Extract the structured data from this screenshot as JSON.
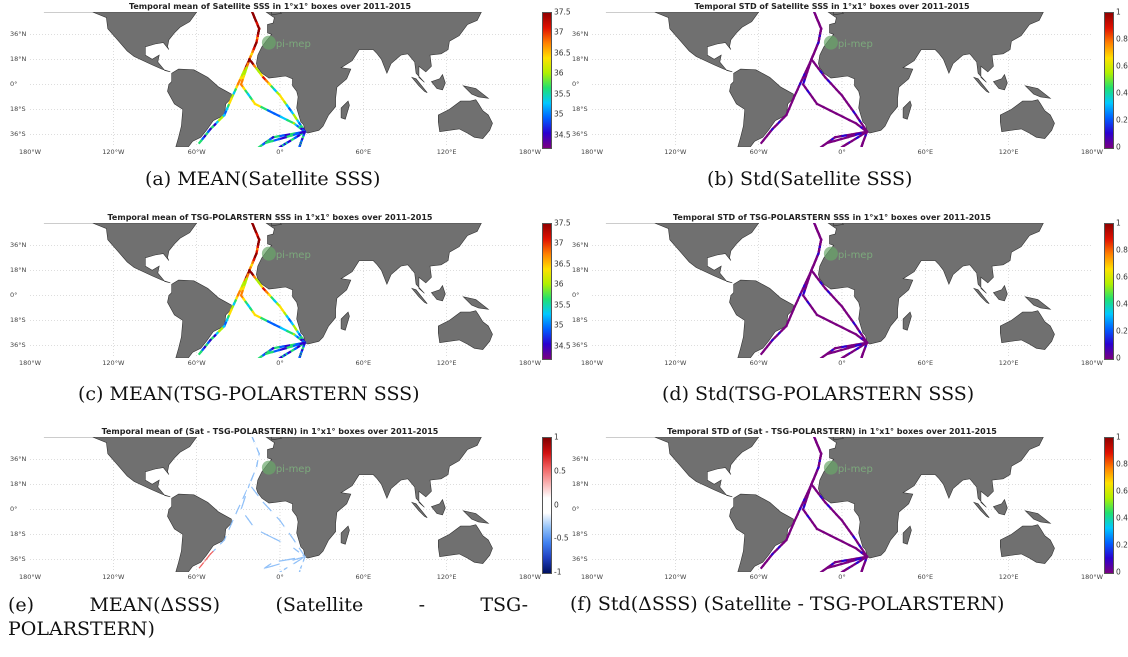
{
  "period": "2011-2015",
  "latitude_ticks": [
    "36°N",
    "18°N",
    "0°",
    "18°S",
    "36°S"
  ],
  "longitude_ticks": [
    "180°W",
    "120°W",
    "60°W",
    "0°",
    "60°E",
    "120°E",
    "180°W"
  ],
  "colormaps": {
    "jet": [
      "#7a0080",
      "#2a00d0",
      "#0060ff",
      "#00c8ff",
      "#20e070",
      "#b0f000",
      "#ffe000",
      "#ff8000",
      "#e01000",
      "#900000"
    ],
    "diverging": [
      "#001060",
      "#2040c0",
      "#4080f0",
      "#90c0f8",
      "#ffffff",
      "#ffffff",
      "#f8b0b0",
      "#f06060",
      "#d01010",
      "#800000"
    ]
  },
  "land_color": "#707070",
  "watermark": "pi-mep",
  "panels": [
    {
      "title": "Temporal mean of Satellite SSS in 1°x1° boxes over 2011-2015",
      "caption": "(a) MEAN(Satellite SSS)",
      "colormap": "jet",
      "colorbar_ticks": [
        "37.5",
        "37",
        "36.5",
        "36",
        "35.5",
        "35",
        "34.5"
      ],
      "colorbar_range": [
        34.2,
        37.5
      ]
    },
    {
      "title": "Temporal STD of Satellite SSS in 1°x1° boxes over 2011-2015",
      "caption": "(b) Std(Satellite SSS)",
      "colormap": "jet",
      "colorbar_ticks": [
        "1",
        "0.8",
        "0.6",
        "0.4",
        "0.2",
        "0"
      ],
      "colorbar_range": [
        0,
        1
      ]
    },
    {
      "title": "Temporal mean of TSG-POLARSTERN SSS in 1°x1° boxes over 2011-2015",
      "caption": "(c) MEAN(TSG-POLARSTERN SSS)",
      "colormap": "jet",
      "colorbar_ticks": [
        "37.5",
        "37",
        "36.5",
        "36",
        "35.5",
        "35",
        "34.5"
      ],
      "colorbar_range": [
        34.2,
        37.5
      ]
    },
    {
      "title": "Temporal STD of TSG-POLARSTERN SSS in 1°x1° boxes over 2011-2015",
      "caption": "(d) Std(TSG-POLARSTERN SSS)",
      "colormap": "jet",
      "colorbar_ticks": [
        "1",
        "0.8",
        "0.6",
        "0.4",
        "0.2",
        "0"
      ],
      "colorbar_range": [
        0,
        1
      ]
    },
    {
      "title": "Temporal mean of (Sat - TSG-POLARSTERN) in 1°x1° boxes over 2011-2015",
      "caption_line1": [
        "(e)",
        "MEAN(ΔSSS)",
        "(Satellite",
        "-",
        "TSG-"
      ],
      "caption_line2": "POLARSTERN)",
      "colormap": "diverging",
      "colorbar_ticks": [
        "1",
        "0.5",
        "0",
        "-0.5",
        "-1"
      ],
      "colorbar_range": [
        -1,
        1
      ]
    },
    {
      "title": "Temporal STD of (Sat - TSG-POLARSTERN) in 1°x1° boxes over 2011-2015",
      "caption": "(f) Std(ΔSSS) (Satellite - TSG-POLARSTERN)",
      "colormap": "jet",
      "colorbar_ticks": [
        "1",
        "0.8",
        "0.6",
        "0.4",
        "0.2",
        "0"
      ],
      "colorbar_range": [
        0,
        1
      ]
    }
  ]
}
